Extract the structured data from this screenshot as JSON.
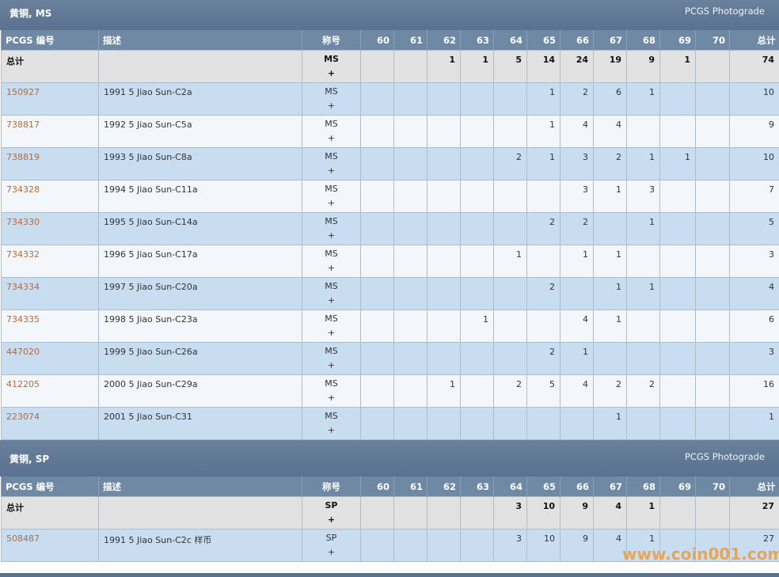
{
  "sections": [
    {
      "title": "黄铜, MS",
      "link": "PCGS Photograde",
      "columns": [
        "PCGS 编号",
        "描述",
        "称号",
        "60",
        "61",
        "62",
        "63",
        "64",
        "65",
        "66",
        "67",
        "68",
        "69",
        "70",
        "总计"
      ],
      "totals": {
        "label": "总计",
        "designation": [
          "MS",
          "+"
        ],
        "counts": [
          null,
          null,
          1,
          1,
          5,
          14,
          24,
          19,
          9,
          1,
          null
        ],
        "total": 74
      },
      "rows": [
        {
          "id": "150927",
          "desc": "1991 5 Jiao Sun-C2a",
          "designation": [
            "MS",
            "+"
          ],
          "counts": [
            null,
            null,
            null,
            null,
            null,
            1,
            2,
            6,
            1,
            null,
            null
          ],
          "total": 10
        },
        {
          "id": "738817",
          "desc": "1992 5 Jiao Sun-C5a",
          "designation": [
            "MS",
            "+"
          ],
          "counts": [
            null,
            null,
            null,
            null,
            null,
            1,
            4,
            4,
            null,
            null,
            null
          ],
          "total": 9
        },
        {
          "id": "738819",
          "desc": "1993 5 Jiao Sun-C8a",
          "designation": [
            "MS",
            "+"
          ],
          "counts": [
            null,
            null,
            null,
            null,
            2,
            1,
            3,
            2,
            1,
            1,
            null
          ],
          "total": 10
        },
        {
          "id": "734328",
          "desc": "1994 5 Jiao Sun-C11a",
          "designation": [
            "MS",
            "+"
          ],
          "counts": [
            null,
            null,
            null,
            null,
            null,
            null,
            3,
            1,
            3,
            null,
            null
          ],
          "total": 7
        },
        {
          "id": "734330",
          "desc": "1995 5 Jiao Sun-C14a",
          "designation": [
            "MS",
            "+"
          ],
          "counts": [
            null,
            null,
            null,
            null,
            null,
            2,
            2,
            null,
            1,
            null,
            null
          ],
          "total": 5
        },
        {
          "id": "734332",
          "desc": "1996 5 Jiao Sun-C17a",
          "designation": [
            "MS",
            "+"
          ],
          "counts": [
            null,
            null,
            null,
            null,
            1,
            null,
            1,
            1,
            null,
            null,
            null
          ],
          "total": 3
        },
        {
          "id": "734334",
          "desc": "1997 5 Jiao Sun-C20a",
          "designation": [
            "MS",
            "+"
          ],
          "counts": [
            null,
            null,
            null,
            null,
            null,
            2,
            null,
            1,
            1,
            null,
            null
          ],
          "total": 4
        },
        {
          "id": "734335",
          "desc": "1998 5 Jiao Sun-C23a",
          "designation": [
            "MS",
            "+"
          ],
          "counts": [
            null,
            null,
            null,
            1,
            null,
            null,
            4,
            1,
            null,
            null,
            null
          ],
          "total": 6
        },
        {
          "id": "447020",
          "desc": "1999 5 Jiao Sun-C26a",
          "designation": [
            "MS",
            "+"
          ],
          "counts": [
            null,
            null,
            null,
            null,
            null,
            2,
            1,
            null,
            null,
            null,
            null
          ],
          "total": 3
        },
        {
          "id": "412205",
          "desc": "2000 5 Jiao Sun-C29a",
          "designation": [
            "MS",
            "+"
          ],
          "counts": [
            null,
            null,
            1,
            null,
            2,
            5,
            4,
            2,
            2,
            null,
            null
          ],
          "total": 16
        },
        {
          "id": "223074",
          "desc": "2001 5 Jiao Sun-C31",
          "designation": [
            "MS",
            "+"
          ],
          "counts": [
            null,
            null,
            null,
            null,
            null,
            null,
            null,
            1,
            null,
            null,
            null
          ],
          "total": 1
        }
      ]
    },
    {
      "title": "黄铜, SP",
      "link": "PCGS Photograde",
      "columns": [
        "PCGS 编号",
        "描述",
        "称号",
        "60",
        "61",
        "62",
        "63",
        "64",
        "65",
        "66",
        "67",
        "68",
        "69",
        "70",
        "总计"
      ],
      "totals": {
        "label": "总计",
        "designation": [
          "SP",
          "+"
        ],
        "counts": [
          null,
          null,
          null,
          null,
          3,
          10,
          9,
          4,
          1,
          null,
          null
        ],
        "total": 27
      },
      "rows": [
        {
          "id": "508487",
          "desc": "1991 5 Jiao Sun-C2c 样币",
          "designation": [
            "SP",
            "+"
          ],
          "counts": [
            null,
            null,
            null,
            null,
            3,
            10,
            9,
            4,
            1,
            null,
            null
          ],
          "total": 27
        }
      ]
    }
  ],
  "watermark": "www.coin001.com"
}
